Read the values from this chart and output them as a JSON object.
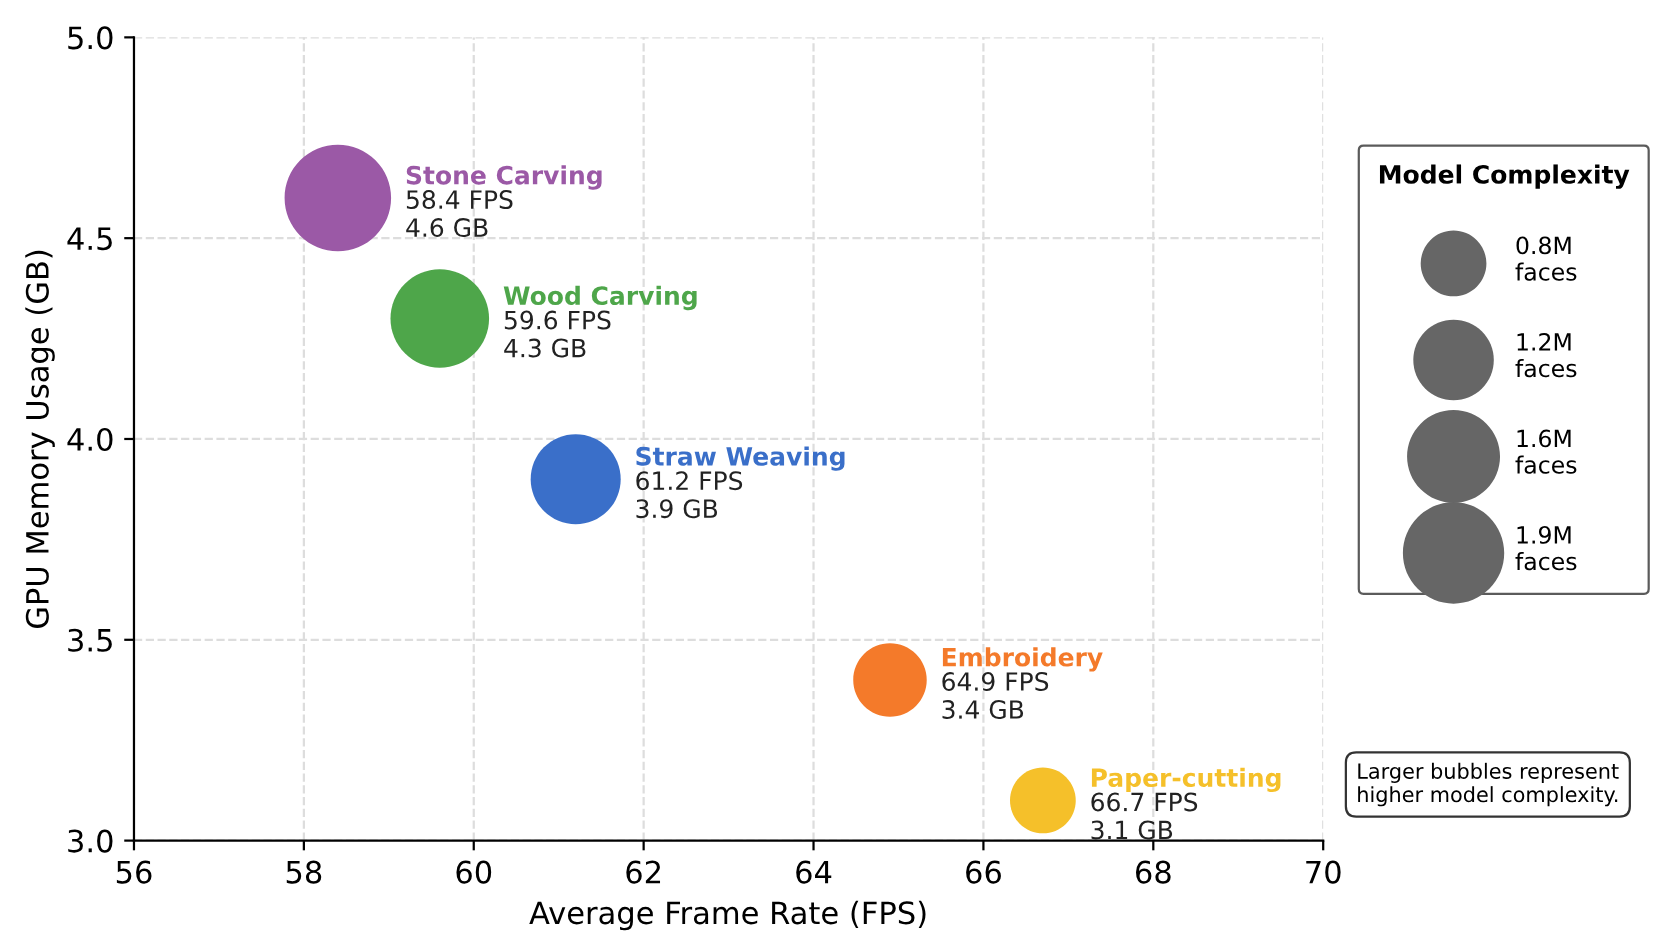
{
  "chart_data": {
    "type": "bubble",
    "xlabel": "Average Frame Rate (FPS)",
    "ylabel": "GPU Memory Usage (GB)",
    "xlim": [
      56,
      70
    ],
    "xticks": [
      56,
      58,
      60,
      62,
      64,
      66,
      68,
      70
    ],
    "ylim": [
      3.0,
      5.0
    ],
    "yticks": [
      {
        "value": 3.0,
        "label": "3.0"
      },
      {
        "value": 3.5,
        "label": "3.5"
      },
      {
        "value": 4.0,
        "label": "4.0"
      },
      {
        "value": 4.5,
        "label": "4.5"
      },
      {
        "value": 5.0,
        "label": "5.0"
      }
    ],
    "grid": true,
    "legend": "right",
    "legend_title": "Model Complexity",
    "size_legend": [
      {
        "value": 0.8,
        "label": "0.8M\nfaces"
      },
      {
        "value": 1.2,
        "label": "1.2M\nfaces"
      },
      {
        "value": 1.6,
        "label": "1.6M\nfaces"
      },
      {
        "value": 1.9,
        "label": "1.9M\nfaces"
      }
    ],
    "series": [
      {
        "name": "Stone Carving",
        "color": "#9b59a6",
        "x": [
          58.4
        ],
        "values": [
          4.6
        ],
        "sizes": [
          2.1
        ],
        "value_labels": [
          "58.4 FPS\n4.6 GB"
        ]
      },
      {
        "name": "Wood Carving",
        "color": "#4ea64a",
        "x": [
          59.6
        ],
        "values": [
          4.3
        ],
        "sizes": [
          1.8
        ],
        "value_labels": [
          "59.6 FPS\n4.3 GB"
        ]
      },
      {
        "name": "Straw Weaving",
        "color": "#3a6fc9",
        "x": [
          61.2
        ],
        "values": [
          3.9
        ],
        "sizes": [
          1.5
        ],
        "value_labels": [
          "61.2 FPS\n3.9 GB"
        ]
      },
      {
        "name": "Embroidery",
        "color": "#f47a2a",
        "x": [
          64.9
        ],
        "values": [
          3.4
        ],
        "sizes": [
          1.0
        ],
        "value_labels": [
          "64.9 FPS\n3.4 GB"
        ]
      },
      {
        "name": "Paper-cutting",
        "color": "#f5c02a",
        "x": [
          66.7
        ],
        "values": [
          3.1
        ],
        "sizes": [
          0.8
        ],
        "value_labels": [
          "66.7 FPS\n3.1 GB"
        ]
      }
    ],
    "annotations": [
      "Larger bubbles represent\nhigher model complexity."
    ]
  }
}
